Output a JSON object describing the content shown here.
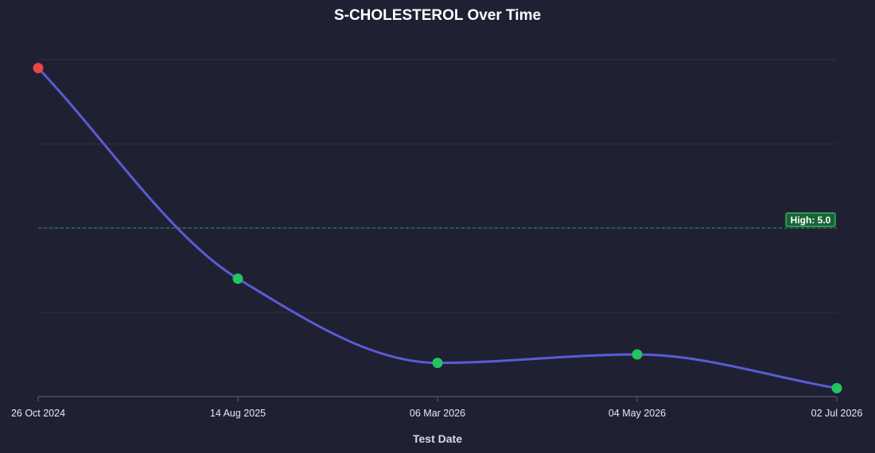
{
  "chart_data": {
    "type": "line",
    "title": "S-CHOLESTEROL Over Time",
    "xlabel": "Test Date",
    "ylabel": "",
    "x": [
      "26 Oct 2024",
      "14 Aug 2025",
      "06 Mar 2026",
      "04 May 2026",
      "02 Jul 2026"
    ],
    "series": [
      {
        "values": [
          6.9,
          4.4,
          3.4,
          3.5,
          3.1
        ],
        "point_status": [
          "high",
          "normal",
          "normal",
          "normal",
          "normal"
        ]
      }
    ],
    "ylim": [
      3.0,
      7.0
    ],
    "y_gridlines": [
      4.0,
      5.0,
      6.0,
      7.0
    ],
    "grid": true,
    "reference_line": {
      "label": "High: 5.0",
      "value": 5.0
    },
    "colors": {
      "background": "#1f2133",
      "line": "#5b5bd6",
      "normal_point": "#22c55e",
      "high_point": "#ef4444",
      "reference": "#22c55e",
      "grid": "#2e3145",
      "axis": "#4a4e63"
    }
  }
}
